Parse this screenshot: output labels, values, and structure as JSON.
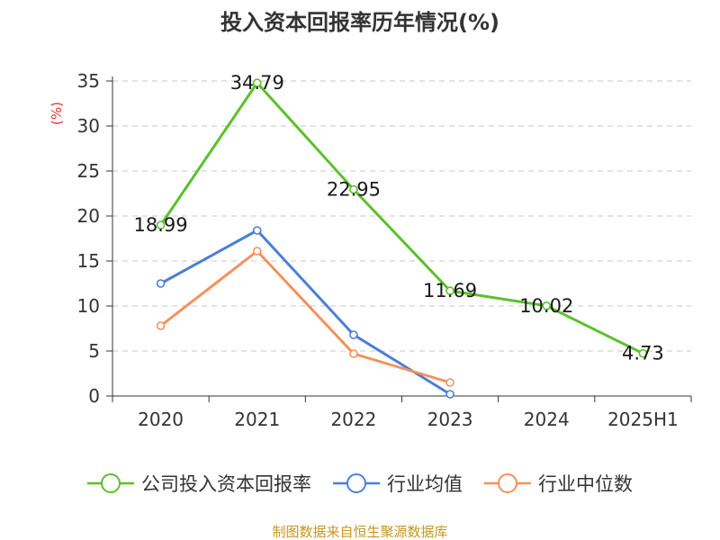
{
  "chart_data": {
    "type": "line",
    "title": "投入资本回报率历年情况(%)",
    "ylabel": "(%)",
    "categories": [
      "2020",
      "2021",
      "2022",
      "2023",
      "2024",
      "2025H1"
    ],
    "yticks": [
      "0",
      "5",
      "10",
      "15",
      "20",
      "25",
      "30",
      "35"
    ],
    "ylim": [
      0,
      35
    ],
    "grid": true,
    "legend_position": "bottom",
    "series": [
      {
        "name": "公司投入资本回报率",
        "color": "#5cc02a",
        "values": [
          18.99,
          34.79,
          22.95,
          11.69,
          10.02,
          4.73
        ],
        "labels": [
          "18.99",
          "34.79",
          "22.95",
          "11.69",
          "10.02",
          "4.73"
        ]
      },
      {
        "name": "行业均值",
        "color": "#4a7fd8",
        "values": [
          12.5,
          18.4,
          6.8,
          0.2,
          null,
          null
        ],
        "labels": []
      },
      {
        "name": "行业中位数",
        "color": "#f5915a",
        "values": [
          7.8,
          16.1,
          4.7,
          1.5,
          null,
          null
        ],
        "labels": []
      }
    ]
  },
  "source": "制图数据来自恒生聚源数据库"
}
